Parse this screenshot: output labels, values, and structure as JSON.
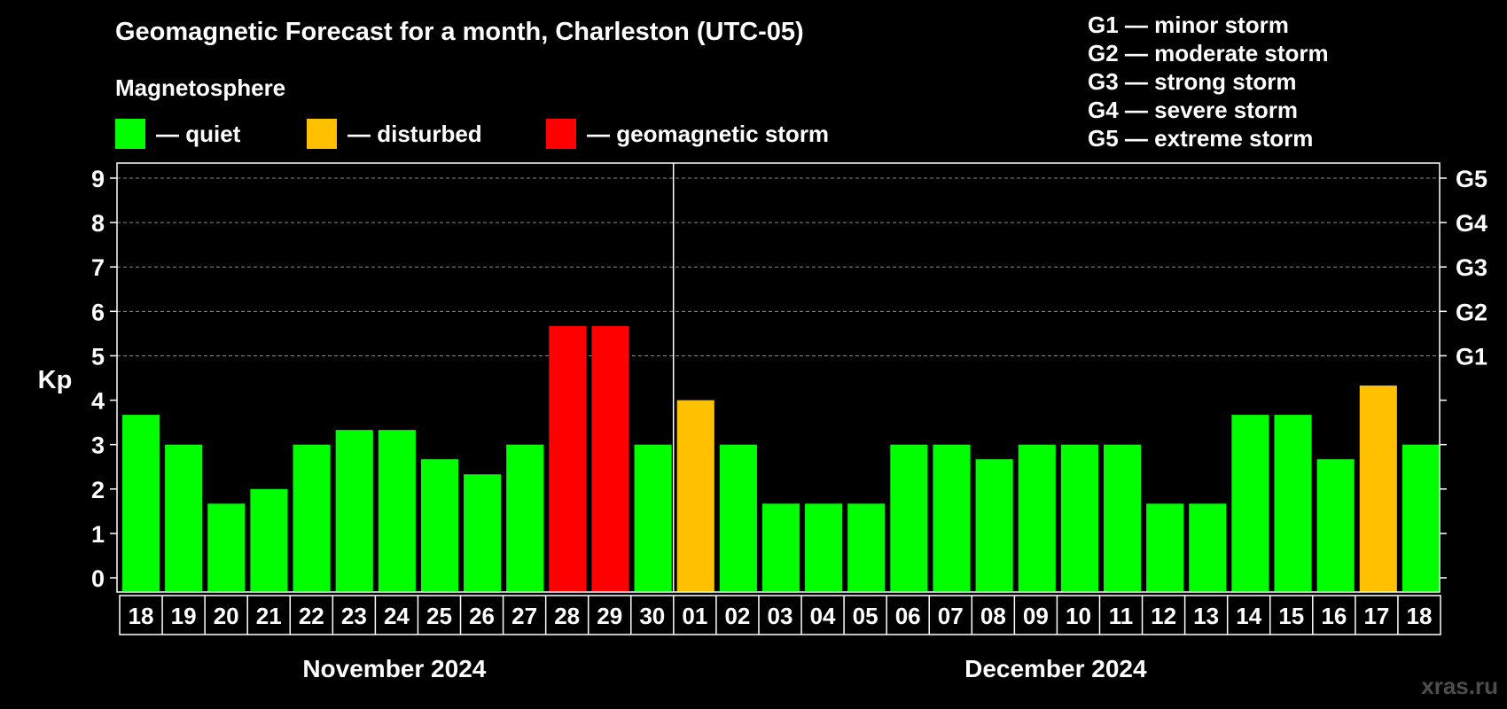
{
  "colors": {
    "quiet": "#00ff00",
    "disturbed": "#ffc000",
    "storm": "#ff0000",
    "background": "#000000",
    "foreground": "#ffffff"
  },
  "title": "Geomagnetic Forecast for a month, Charleston (UTC-05)",
  "subtitle": "Magnetosphere",
  "legend": [
    {
      "label": "— quiet",
      "color": "#00ff00"
    },
    {
      "label": "— disturbed",
      "color": "#ffc000"
    },
    {
      "label": "— geomagnetic storm",
      "color": "#ff0000"
    }
  ],
  "storm_levels": [
    {
      "code": "G1",
      "text": "— minor storm"
    },
    {
      "code": "G2",
      "text": "— moderate storm"
    },
    {
      "code": "G3",
      "text": "— strong storm"
    },
    {
      "code": "G4",
      "text": "— severe storm"
    },
    {
      "code": "G5",
      "text": "— extreme storm"
    }
  ],
  "watermark": "xras.ru",
  "chart_data": {
    "type": "bar",
    "ylabel": "Kp",
    "ylim": [
      0,
      9
    ],
    "yticks": [
      "0",
      "1",
      "2",
      "3",
      "4",
      "5",
      "6",
      "7",
      "8",
      "9"
    ],
    "right_axis": [
      {
        "label": "G1",
        "kp": 5
      },
      {
        "label": "G2",
        "kp": 6
      },
      {
        "label": "G3",
        "kp": 7
      },
      {
        "label": "G4",
        "kp": 8
      },
      {
        "label": "G5",
        "kp": 9
      }
    ],
    "grid": true,
    "month_divider_after_index": 12,
    "month_labels": [
      {
        "label": "November 2024",
        "from": 0,
        "to": 12
      },
      {
        "label": "December 2024",
        "from": 13,
        "to": 30
      }
    ],
    "categories": [
      "18",
      "19",
      "20",
      "21",
      "22",
      "23",
      "24",
      "25",
      "26",
      "27",
      "28",
      "29",
      "30",
      "01",
      "02",
      "03",
      "04",
      "05",
      "06",
      "07",
      "08",
      "09",
      "10",
      "11",
      "12",
      "13",
      "14",
      "15",
      "16",
      "17",
      "18"
    ],
    "values": [
      3.67,
      3.0,
      1.67,
      2.0,
      3.0,
      3.33,
      3.33,
      2.67,
      2.33,
      3.0,
      5.67,
      5.67,
      3.0,
      4.0,
      3.0,
      1.67,
      1.67,
      1.67,
      3.0,
      3.0,
      2.67,
      3.0,
      3.0,
      3.0,
      1.67,
      1.67,
      3.67,
      3.67,
      2.67,
      4.33,
      3.0
    ],
    "status": [
      "quiet",
      "quiet",
      "quiet",
      "quiet",
      "quiet",
      "quiet",
      "quiet",
      "quiet",
      "quiet",
      "quiet",
      "storm",
      "storm",
      "quiet",
      "disturbed",
      "quiet",
      "quiet",
      "quiet",
      "quiet",
      "quiet",
      "quiet",
      "quiet",
      "quiet",
      "quiet",
      "quiet",
      "quiet",
      "quiet",
      "quiet",
      "quiet",
      "quiet",
      "disturbed",
      "quiet"
    ]
  }
}
